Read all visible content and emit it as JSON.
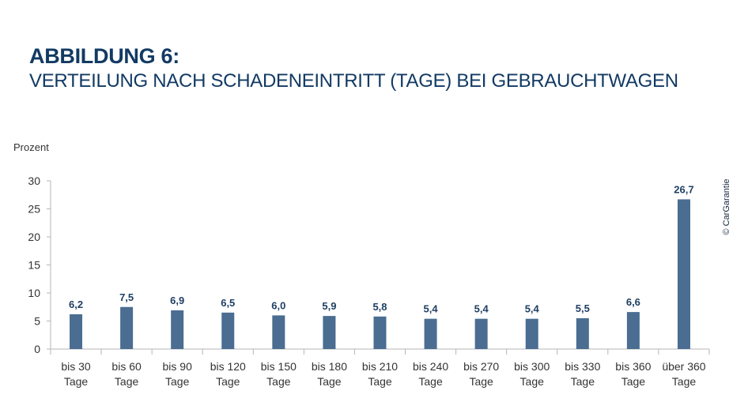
{
  "header": {
    "title": "ABBILDUNG 6:",
    "subtitle": "VERTEILUNG NACH SCHADENEINTRITT (TAGE) BEI GEBRAUCHTWAGEN"
  },
  "copyright": "© CarGarantie",
  "colors": {
    "bar": "#4a6d91",
    "title": "#123a63",
    "label": "#1f3f63",
    "axis": "#b5b5b5",
    "text": "#333333"
  },
  "chart_data": {
    "type": "bar",
    "title": "",
    "ylabel": "Prozent",
    "xlabel": "",
    "ylim": [
      0,
      30
    ],
    "yticks": [
      0,
      5,
      10,
      15,
      20,
      25,
      30
    ],
    "grid": false,
    "categories": [
      [
        "bis 30",
        "Tage"
      ],
      [
        "bis 60",
        "Tage"
      ],
      [
        "bis 90",
        "Tage"
      ],
      [
        "bis 120",
        "Tage"
      ],
      [
        "bis 150",
        "Tage"
      ],
      [
        "bis 180",
        "Tage"
      ],
      [
        "bis 210",
        "Tage"
      ],
      [
        "bis 240",
        "Tage"
      ],
      [
        "bis 270",
        "Tage"
      ],
      [
        "bis 300",
        "Tage"
      ],
      [
        "bis 330",
        "Tage"
      ],
      [
        "bis 360",
        "Tage"
      ],
      [
        "über 360",
        "Tage"
      ]
    ],
    "values": [
      6.2,
      7.5,
      6.9,
      6.5,
      6.0,
      5.9,
      5.8,
      5.4,
      5.4,
      5.4,
      5.5,
      6.6,
      26.7
    ],
    "value_labels": [
      "6,2",
      "7,5",
      "6,9",
      "6,5",
      "6,0",
      "5,9",
      "5,8",
      "5,4",
      "5,4",
      "5,4",
      "5,5",
      "6,6",
      "26,7"
    ]
  }
}
